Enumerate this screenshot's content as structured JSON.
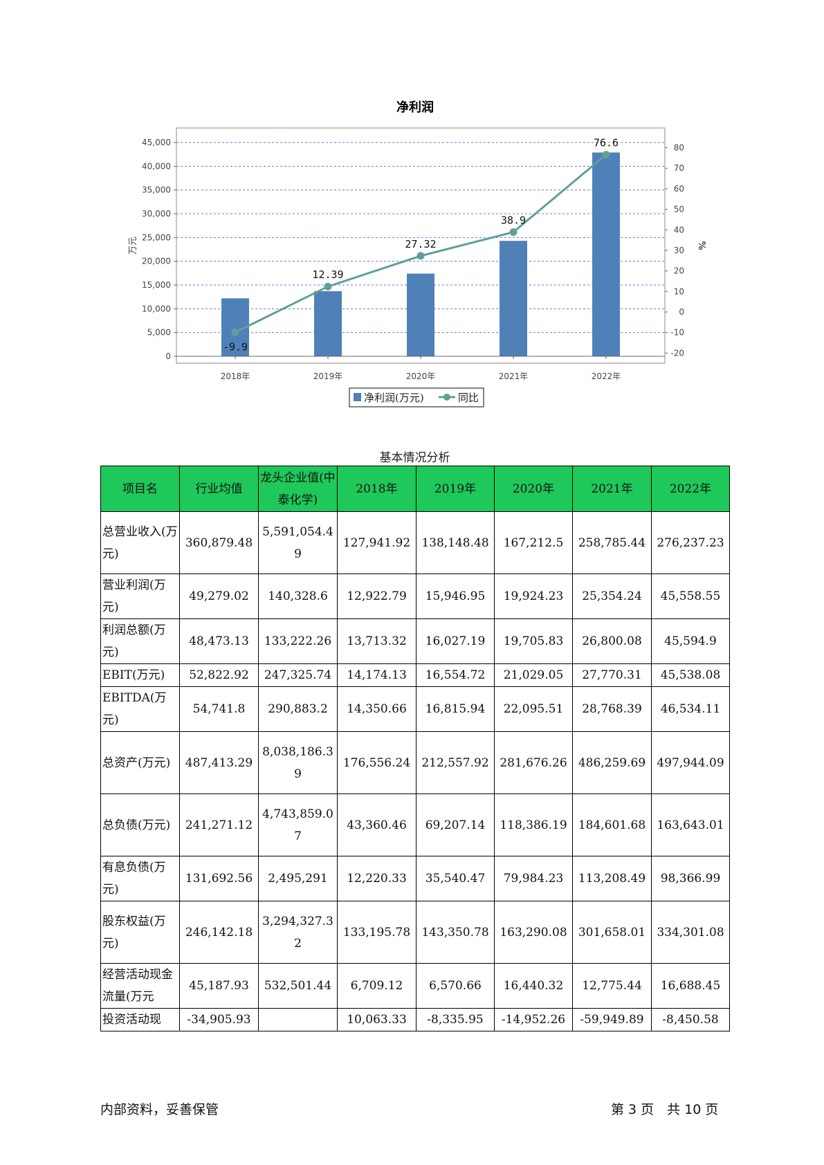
{
  "chart_data": {
    "type": "bar",
    "title": "净利润",
    "categories": [
      "2018年",
      "2019年",
      "2020年",
      "2021年",
      "2022年"
    ],
    "series": [
      {
        "name": "净利润(万元)",
        "type": "bar",
        "values": [
          12200,
          13700,
          17400,
          24300,
          42900
        ],
        "color": "#4f81b8"
      },
      {
        "name": "同比",
        "type": "line",
        "values": [
          -9.9,
          12.39,
          27.32,
          38.9,
          76.6
        ],
        "labels": [
          "-9.9",
          "12.39",
          "27.32",
          "38.9",
          "76.6"
        ],
        "color": "#5fa096"
      }
    ],
    "ylabel": "万元",
    "y2label": "%",
    "ylim": [
      0,
      48000
    ],
    "y2lim": [
      -23,
      85
    ],
    "yticks": [
      "0",
      "5,000",
      "10,000",
      "15,000",
      "20,000",
      "25,000",
      "30,000",
      "35,000",
      "40,000",
      "45,000"
    ],
    "y2ticks": [
      "-20",
      "-10",
      "0",
      "10",
      "20",
      "30",
      "40",
      "50",
      "60",
      "70",
      "80"
    ],
    "grid": true,
    "legend": "bottom"
  },
  "table": {
    "caption": "基本情况分析",
    "headers": [
      "项目名",
      "行业均值",
      "龙头企业值(中泰化学)",
      "2018年",
      "2019年",
      "2020年",
      "2021年",
      "2022年"
    ],
    "rows": [
      [
        "总营业收入(万元)",
        "360,879.48",
        "5,591,054.49",
        "127,941.92",
        "138,148.48",
        "167,212.5",
        "258,785.44",
        "276,237.23"
      ],
      [
        "营业利润(万元)",
        "49,279.02",
        "140,328.6",
        "12,922.79",
        "15,946.95",
        "19,924.23",
        "25,354.24",
        "45,558.55"
      ],
      [
        "利润总额(万元)",
        "48,473.13",
        "133,222.26",
        "13,713.32",
        "16,027.19",
        "19,705.83",
        "26,800.08",
        "45,594.9"
      ],
      [
        "EBIT(万元)",
        "52,822.92",
        "247,325.74",
        "14,174.13",
        "16,554.72",
        "21,029.05",
        "27,770.31",
        "45,538.08"
      ],
      [
        "EBITDA(万元)",
        "54,741.8",
        "290,883.2",
        "14,350.66",
        "16,815.94",
        "22,095.51",
        "28,768.39",
        "46,534.11"
      ],
      [
        "总资产(万元)",
        "487,413.29",
        "8,038,186.39",
        "176,556.24",
        "212,557.92",
        "281,676.26",
        "486,259.69",
        "497,944.09"
      ],
      [
        "总负债(万元)",
        "241,271.12",
        "4,743,859.07",
        "43,360.46",
        "69,207.14",
        "118,386.19",
        "184,601.68",
        "163,643.01"
      ],
      [
        "有息负债(万元)",
        "131,692.56",
        "2,495,291",
        "12,220.33",
        "35,540.47",
        "79,984.23",
        "113,208.49",
        "98,366.99"
      ],
      [
        "股东权益(万元)",
        "246,142.18",
        "3,294,327.32",
        "133,195.78",
        "143,350.78",
        "163,290.08",
        "301,658.01",
        "334,301.08"
      ],
      [
        "经营活动现金流量(万元",
        "45,187.93",
        "532,501.44",
        "6,709.12",
        "6,570.66",
        "16,440.32",
        "12,775.44",
        "16,688.45"
      ],
      [
        "投资活动现",
        "-34,905.93",
        "",
        "10,063.33",
        "-8,335.95",
        "-14,952.26",
        "-59,949.89",
        "-8,450.58"
      ]
    ]
  },
  "footer": {
    "left": "内部资料，妥善保管",
    "right": "第 3 页　共 10 页"
  }
}
